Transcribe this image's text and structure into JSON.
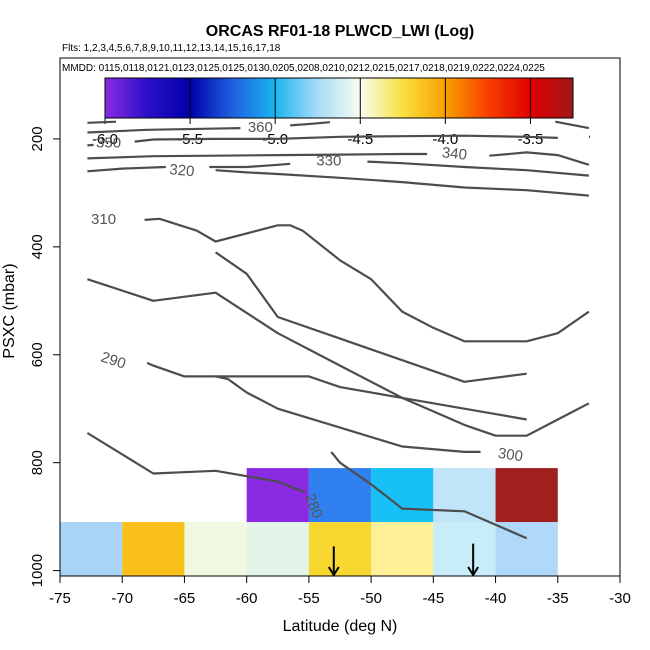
{
  "chart_data": {
    "type": "heatmap",
    "title": "ORCAS RF01-18 PLWCD_LWI (Log)",
    "flights_text": "Flts: 1,2,3,4,5,6,7,8,9,10,11,12,13,14,15,16,17,18",
    "dates_text": "MMDD: 0115,0118,0121,0123,0125,0125,0130,0205,0208,0210,0212,0215,0217,0218,0219,0222,0224,0225",
    "xlabel": "Latitude (deg N)",
    "ylabel": "PSXC (mbar)",
    "xlim": [
      -75,
      -30
    ],
    "ylim": [
      1010,
      50
    ],
    "x_ticks": [
      -75,
      -70,
      -65,
      -60,
      -55,
      -50,
      -45,
      -40,
      -35,
      -30
    ],
    "x_tick_labels": [
      "-75",
      "-70",
      "-65",
      "-60",
      "-55",
      "-50",
      "-45",
      "-40",
      "-35",
      "-30"
    ],
    "y_ticks": [
      200,
      400,
      600,
      800,
      1000
    ],
    "y_tick_labels": [
      "200",
      "400",
      "600",
      "800",
      "1000"
    ],
    "colorbar": {
      "range": [
        -6.0,
        -3.25
      ],
      "ticks": [
        -6.0,
        -5.5,
        -5.0,
        -4.5,
        -4.0,
        -3.5
      ],
      "tick_labels": [
        "-6.0",
        "-5.5",
        "-5.0",
        "-4.5",
        "-4.0",
        "-3.5"
      ],
      "stops": [
        {
          "v": -6.0,
          "c": "#8a2be2"
        },
        {
          "v": -5.75,
          "c": "#2a10c8"
        },
        {
          "v": -5.5,
          "c": "#0000a8"
        },
        {
          "v": -5.25,
          "c": "#2060e0"
        },
        {
          "v": -5.0,
          "c": "#1ab4f0"
        },
        {
          "v": -4.75,
          "c": "#a8dcf8"
        },
        {
          "v": -4.5,
          "c": "#f8fcf0"
        },
        {
          "v": -4.25,
          "c": "#f8e040"
        },
        {
          "v": -4.0,
          "c": "#f8a000"
        },
        {
          "v": -3.75,
          "c": "#f84000"
        },
        {
          "v": -3.5,
          "c": "#e00000"
        },
        {
          "v": -3.25,
          "c": "#a01818"
        }
      ]
    },
    "cells": [
      {
        "x0": -75,
        "x1": -70,
        "p0": 910,
        "p1": 1010,
        "color": "#a8d4f8"
      },
      {
        "x0": -70,
        "x1": -65,
        "p0": 910,
        "p1": 1010,
        "color": "#f8c018"
      },
      {
        "x0": -65,
        "x1": -60,
        "p0": 910,
        "p1": 1010,
        "color": "#f0f8e0"
      },
      {
        "x0": -60,
        "x1": -55,
        "p0": 910,
        "p1": 1010,
        "color": "#e4f4e8"
      },
      {
        "x0": -55,
        "x1": -50,
        "p0": 910,
        "p1": 1010,
        "color": "#f8d830"
      },
      {
        "x0": -50,
        "x1": -45,
        "p0": 910,
        "p1": 1010,
        "color": "#fff098"
      },
      {
        "x0": -45,
        "x1": -40,
        "p0": 910,
        "p1": 1010,
        "color": "#c8ecf8"
      },
      {
        "x0": -40,
        "x1": -35,
        "p0": 910,
        "p1": 1010,
        "color": "#b0d8f8"
      },
      {
        "x0": -60,
        "x1": -55,
        "p0": 810,
        "p1": 910,
        "color": "#8a2be2"
      },
      {
        "x0": -55,
        "x1": -50,
        "p0": 810,
        "p1": 910,
        "color": "#3080f0"
      },
      {
        "x0": -50,
        "x1": -45,
        "p0": 810,
        "p1": 910,
        "color": "#18c0f8"
      },
      {
        "x0": -45,
        "x1": -40,
        "p0": 810,
        "p1": 910,
        "color": "#c0e4f8"
      },
      {
        "x0": -40,
        "x1": -35,
        "p0": 810,
        "p1": 910,
        "color": "#a02020"
      }
    ],
    "arrows": [
      {
        "x": -53,
        "p_top": 955,
        "p_bottom": 1010
      },
      {
        "x": -41.8,
        "p_top": 950,
        "p_bottom": 1010
      }
    ],
    "contours": [
      {
        "label": "360",
        "label_at": [
          -58.9,
          178
        ],
        "label_rot": 0,
        "segments": [
          [
            [
              -72.8,
              170
            ],
            [
              -70.5,
              168
            ]
          ],
          [
            [
              -72.8,
              188
            ],
            [
              -68,
              183
            ],
            [
              -63,
              181
            ],
            [
              -60.5,
              180
            ]
          ],
          [
            [
              -56.5,
              175
            ],
            [
              -54.8,
              172
            ],
            [
              -53.3,
              169
            ]
          ],
          [
            [
              -35.2,
              168
            ],
            [
              -32.5,
              180
            ]
          ]
        ]
      },
      {
        "label": "350",
        "label_at": [
          -71.1,
          207
        ],
        "label_rot": 0,
        "segments": [
          [
            [
              -72.8,
              212
            ],
            [
              -72.3,
              211
            ]
          ],
          [
            [
              -69,
              205
            ],
            [
              -67.5,
              201
            ],
            [
              -62.5,
              200
            ],
            [
              -57.5,
              200
            ],
            [
              -52.5,
              196
            ],
            [
              -47.5,
              195
            ],
            [
              -42.5,
              194
            ],
            [
              -37.5,
              196
            ],
            [
              -35,
              198
            ]
          ],
          [
            [
              -32.5,
              196
            ],
            [
              -32.4,
              196
            ]
          ]
        ]
      },
      {
        "label": "340",
        "label_at": [
          -43.3,
          227
        ],
        "label_rot": 6,
        "segments": [
          [
            [
              -72.8,
              236
            ],
            [
              -67.5,
              232
            ],
            [
              -62.5,
              231
            ],
            [
              -57.5,
              230
            ],
            [
              -52.5,
              229
            ],
            [
              -47.5,
              228
            ],
            [
              -45.5,
              228
            ]
          ],
          [
            [
              -40.5,
              231
            ],
            [
              -37.5,
              225
            ],
            [
              -35,
              230
            ],
            [
              -32.5,
              248
            ]
          ]
        ]
      },
      {
        "label": "330",
        "label_at": [
          -53.4,
          240
        ],
        "label_rot": 0,
        "segments": [
          [
            [
              -72.8,
              260
            ],
            [
              -70,
              255
            ],
            [
              -66.5,
              252
            ]
          ],
          [
            [
              -63,
              252
            ],
            [
              -60,
              252
            ],
            [
              -57.5,
              248
            ],
            [
              -56.5,
              246
            ]
          ],
          [
            [
              -50.3,
              242
            ],
            [
              -47.5,
              245
            ],
            [
              -42.5,
              252
            ],
            [
              -37.5,
              258
            ],
            [
              -32.5,
              268
            ]
          ]
        ]
      },
      {
        "label": "320",
        "label_at": [
          -65.2,
          258
        ],
        "label_rot": 5,
        "segments": [
          [
            [
              -62.5,
              258
            ],
            [
              -60,
              262
            ],
            [
              -57.5,
              265
            ],
            [
              -52.5,
              272
            ],
            [
              -47.5,
              280
            ],
            [
              -42.5,
              290
            ],
            [
              -37.5,
              295
            ],
            [
              -32.5,
              305
            ]
          ]
        ]
      },
      {
        "label": "310",
        "label_at": [
          -71.5,
          348
        ],
        "label_rot": 0,
        "segments": [
          [
            [
              -68.2,
              350
            ],
            [
              -67,
              348
            ],
            [
              -64,
              370
            ],
            [
              -62.5,
              390
            ],
            [
              -60,
              375
            ],
            [
              -57.5,
              360
            ],
            [
              -56.5,
              360
            ],
            [
              -55.5,
              370
            ],
            [
              -52.5,
              425
            ],
            [
              -50,
              460
            ],
            [
              -47.5,
              520
            ],
            [
              -45,
              550
            ],
            [
              -42.5,
              575
            ],
            [
              -40,
              575
            ],
            [
              -37.5,
              575
            ],
            [
              -35,
              560
            ],
            [
              -32.5,
              520
            ]
          ]
        ]
      },
      {
        "label": "",
        "label_at": [
          0,
          0
        ],
        "label_rot": 0,
        "segments": [
          [
            [
              -72.8,
              460
            ],
            [
              -67.5,
              500
            ],
            [
              -62.5,
              485
            ],
            [
              -57.5,
              560
            ],
            [
              -52.5,
              620
            ],
            [
              -47.5,
              680
            ],
            [
              -42.5,
              730
            ],
            [
              -40,
              750
            ],
            [
              -37.5,
              750
            ],
            [
              -35,
              720
            ],
            [
              -32.5,
              690
            ]
          ]
        ]
      },
      {
        "label": "290",
        "label_at": [
          -70.7,
          610
        ],
        "label_rot": 18,
        "segments": [
          [
            [
              -68,
              615
            ],
            [
              -67.5,
              620
            ],
            [
              -65,
              640
            ],
            [
              -62.5,
              640
            ],
            [
              -60,
              640
            ],
            [
              -57.5,
              640
            ],
            [
              -55,
              640
            ],
            [
              -52.5,
              660
            ],
            [
              -47.5,
              680
            ],
            [
              -42.5,
              700
            ],
            [
              -40,
              710
            ],
            [
              -37.5,
              720
            ]
          ]
        ]
      },
      {
        "label": "300",
        "label_at": [
          -38.8,
          785
        ],
        "label_rot": 8,
        "segments": [
          [
            [
              -62.5,
              410
            ],
            [
              -60,
              450
            ],
            [
              -57.5,
              530
            ],
            [
              -52.5,
              570
            ],
            [
              -47.5,
              610
            ],
            [
              -42.5,
              650
            ],
            [
              -37.5,
              635
            ]
          ],
          [
            [
              -62.5,
              640
            ],
            [
              -61.5,
              645
            ],
            [
              -60,
              670
            ],
            [
              -57.5,
              700
            ],
            [
              -52.5,
              735
            ],
            [
              -47.5,
              770
            ],
            [
              -42.5,
              780
            ],
            [
              -41.2,
              780
            ]
          ]
        ]
      },
      {
        "label": "280",
        "label_at": [
          -54.6,
          880
        ],
        "label_rot": 70,
        "segments": [
          [
            [
              -72.8,
              745
            ],
            [
              -67.5,
              820
            ],
            [
              -62.5,
              815
            ],
            [
              -57.5,
              835
            ],
            [
              -55.3,
              855
            ]
          ],
          [
            [
              -53.2,
              780
            ],
            [
              -52.5,
              800
            ],
            [
              -50,
              840
            ],
            [
              -47.5,
              885
            ],
            [
              -42.5,
              890
            ],
            [
              -37.5,
              940
            ]
          ]
        ]
      }
    ]
  }
}
